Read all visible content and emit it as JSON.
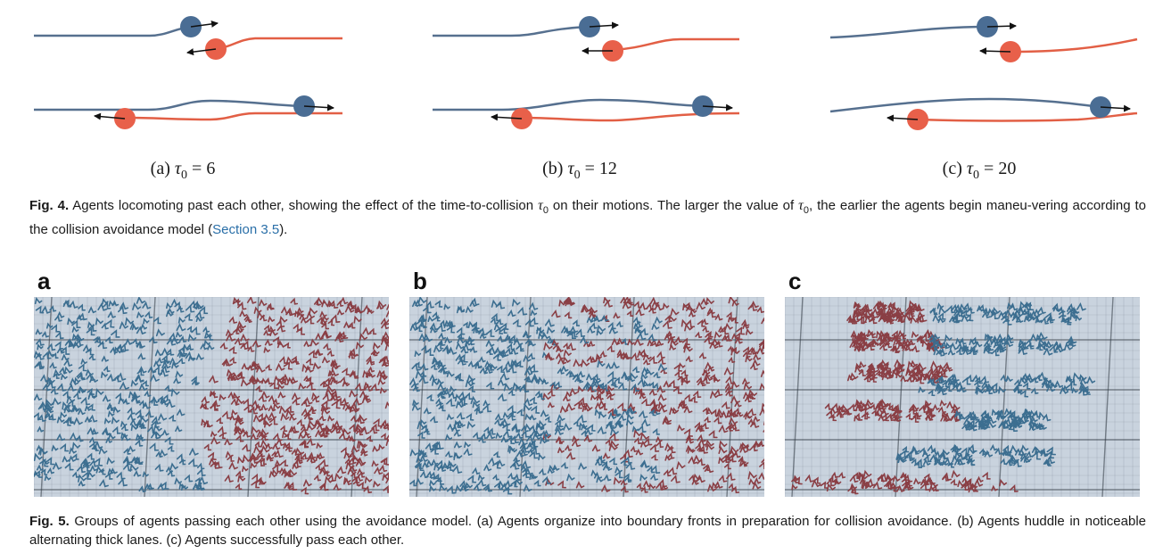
{
  "figure4": {
    "panels": [
      {
        "label_prefix": "(a)",
        "tau_symbol": "τ",
        "tau_sub": "0",
        "value_text": "= 6",
        "tau_value": 6
      },
      {
        "label_prefix": "(b)",
        "tau_symbol": "τ",
        "tau_sub": "0",
        "value_text": "= 12",
        "tau_value": 12
      },
      {
        "label_prefix": "(c)",
        "tau_symbol": "τ",
        "tau_sub": "0",
        "value_text": "= 20",
        "tau_value": 20
      }
    ],
    "caption": {
      "label": "Fig. 4.",
      "text_1": "Agents locomoting past each other, showing the effect of the time-to-collision",
      "tau_1": "τ",
      "tau_1_sub": "0",
      "text_2": "on their motions. The larger the value of",
      "tau_2": "τ",
      "tau_2_sub": "0",
      "text_3": ", the earlier the agents begin maneu-vering according to the collision avoidance model (",
      "link": "Section 3.5",
      "text_4": ")."
    },
    "colors": {
      "blue_agent": "#4a6d94",
      "red_agent": "#e8604a",
      "blue_path": "#56708f",
      "red_path": "#e25f45"
    }
  },
  "figure5": {
    "panels": [
      {
        "letter": "a"
      },
      {
        "letter": "b"
      },
      {
        "letter": "c"
      }
    ],
    "caption": {
      "label": "Fig. 5.",
      "text": "Groups of agents passing each other using the avoidance model. (a) Agents organize into boundary fronts in preparation for collision avoidance. (b) Agents huddle in noticeable alternating thick lanes. (c) Agents successfully pass each other."
    },
    "colors": {
      "floor": "#c9d3de",
      "grid": "#5a6470",
      "blue_crowd": "#3c6e90",
      "red_crowd": "#8a3f45"
    }
  }
}
